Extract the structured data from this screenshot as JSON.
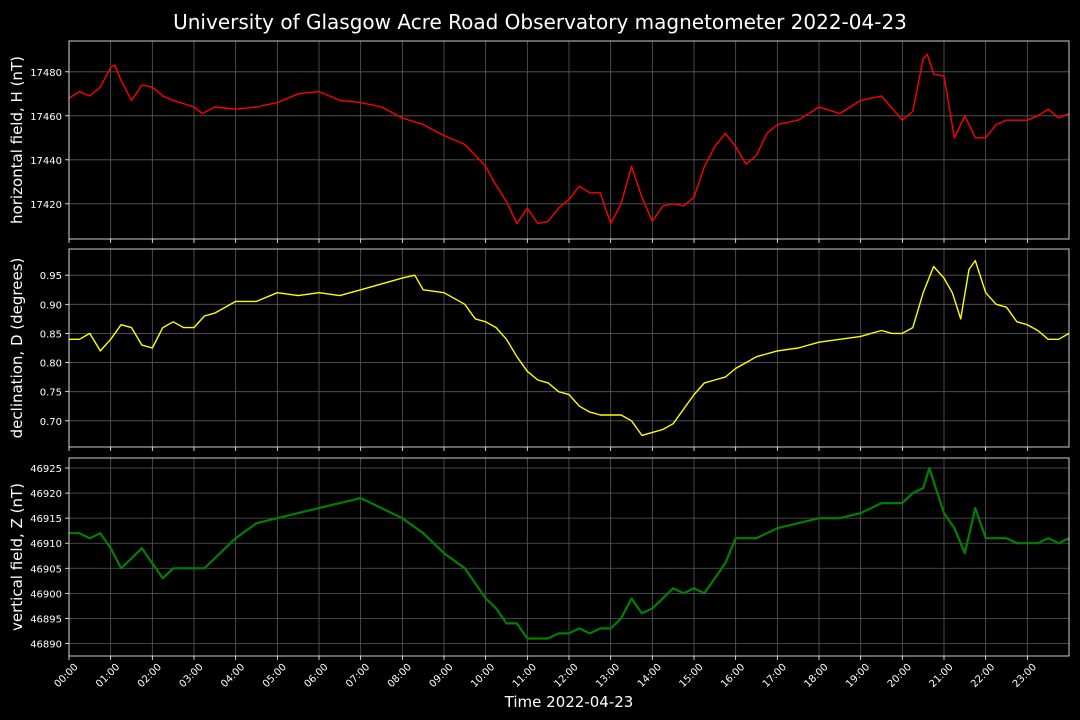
{
  "title": "University of Glasgow Acre Road Observatory magnetometer 2022-04-23",
  "chart_data": [
    {
      "type": "line",
      "ylabel": "horizontal field, H (nT)",
      "color": "#ff0000",
      "ylim": [
        17404,
        17494
      ],
      "yticks": [
        17420,
        17440,
        17460,
        17480
      ],
      "x_hours": [
        0,
        0.25,
        0.5,
        0.75,
        1.0,
        1.1,
        1.25,
        1.5,
        1.75,
        2.0,
        2.25,
        2.5,
        3.0,
        3.2,
        3.5,
        4.0,
        4.5,
        5.0,
        5.5,
        6.0,
        6.5,
        7.0,
        7.5,
        8.0,
        8.5,
        9.0,
        9.5,
        10.0,
        10.2,
        10.5,
        10.75,
        11.0,
        11.25,
        11.5,
        11.75,
        12.0,
        12.25,
        12.5,
        12.75,
        13.0,
        13.25,
        13.5,
        13.75,
        14.0,
        14.25,
        14.5,
        14.75,
        15.0,
        15.25,
        15.5,
        15.75,
        16.0,
        16.25,
        16.5,
        16.75,
        17.0,
        17.5,
        18.0,
        18.5,
        19.0,
        19.5,
        20.0,
        20.25,
        20.5,
        20.6,
        20.75,
        21.0,
        21.25,
        21.5,
        21.75,
        22.0,
        22.25,
        22.5,
        23.0,
        23.25,
        23.5,
        23.75,
        24.0
      ],
      "values": [
        17468,
        17471,
        17469,
        17473,
        17482,
        17483,
        17476,
        17467,
        17474,
        17473,
        17469,
        17467,
        17464,
        17461,
        17464,
        17463,
        17464,
        17466,
        17470,
        17471,
        17467,
        17466,
        17464,
        17459,
        17456,
        17451,
        17447,
        17437,
        17430,
        17421,
        17411,
        17418,
        17411,
        17412,
        17418,
        17422,
        17428,
        17425,
        17425,
        17411,
        17420,
        17437,
        17423,
        17412,
        17419,
        17420,
        17419,
        17423,
        17437,
        17446,
        17452,
        17446,
        17438,
        17442,
        17452,
        17456,
        17458,
        17464,
        17461,
        17467,
        17469,
        17458,
        17462,
        17486,
        17488,
        17479,
        17478,
        17450,
        17460,
        17450,
        17450,
        17456,
        17458,
        17458,
        17460,
        17463,
        17459,
        17461
      ]
    },
    {
      "type": "line",
      "ylabel": "declination, D (degrees)",
      "color": "#ffff00",
      "ylim": [
        0.655,
        0.995
      ],
      "yticks": [
        0.7,
        0.75,
        0.8,
        0.85,
        0.9,
        0.95
      ],
      "x_hours": [
        0,
        0.25,
        0.5,
        0.75,
        1.0,
        1.25,
        1.5,
        1.75,
        2.0,
        2.25,
        2.5,
        2.75,
        3.0,
        3.25,
        3.5,
        4.0,
        4.5,
        5.0,
        5.5,
        6.0,
        6.5,
        7.0,
        7.5,
        8.0,
        8.3,
        8.5,
        9.0,
        9.5,
        9.75,
        10.0,
        10.25,
        10.5,
        10.75,
        11.0,
        11.25,
        11.5,
        11.75,
        12.0,
        12.25,
        12.5,
        12.75,
        13.0,
        13.25,
        13.5,
        13.75,
        14.0,
        14.25,
        14.5,
        14.75,
        15.0,
        15.25,
        15.5,
        15.75,
        16.0,
        16.25,
        16.5,
        17.0,
        17.5,
        18.0,
        18.5,
        19.0,
        19.5,
        19.75,
        20.0,
        20.25,
        20.5,
        20.75,
        21.0,
        21.2,
        21.4,
        21.6,
        21.75,
        22.0,
        22.25,
        22.5,
        22.75,
        23.0,
        23.25,
        23.5,
        23.75,
        24.0
      ],
      "values": [
        0.84,
        0.84,
        0.85,
        0.82,
        0.84,
        0.865,
        0.86,
        0.83,
        0.825,
        0.86,
        0.87,
        0.86,
        0.86,
        0.88,
        0.885,
        0.905,
        0.905,
        0.92,
        0.915,
        0.92,
        0.915,
        0.925,
        0.935,
        0.945,
        0.95,
        0.925,
        0.92,
        0.9,
        0.875,
        0.87,
        0.86,
        0.84,
        0.81,
        0.785,
        0.77,
        0.765,
        0.75,
        0.745,
        0.725,
        0.715,
        0.71,
        0.71,
        0.71,
        0.7,
        0.675,
        0.68,
        0.685,
        0.695,
        0.72,
        0.745,
        0.765,
        0.77,
        0.775,
        0.79,
        0.8,
        0.81,
        0.82,
        0.825,
        0.835,
        0.84,
        0.845,
        0.855,
        0.85,
        0.85,
        0.86,
        0.92,
        0.965,
        0.945,
        0.92,
        0.875,
        0.96,
        0.975,
        0.92,
        0.9,
        0.895,
        0.87,
        0.865,
        0.855,
        0.84,
        0.84,
        0.85
      ]
    },
    {
      "type": "line",
      "ylabel": "vertical field, Z (nT)",
      "color": "#008000",
      "ylim": [
        46887.5,
        46927
      ],
      "yticks": [
        46890,
        46895,
        46900,
        46905,
        46910,
        46915,
        46920,
        46925
      ],
      "x_hours": [
        0,
        0.25,
        0.5,
        0.75,
        1.0,
        1.25,
        1.5,
        1.75,
        2.0,
        2.25,
        2.5,
        2.75,
        3.0,
        3.25,
        3.5,
        4.0,
        4.5,
        5.0,
        5.5,
        6.0,
        6.5,
        7.0,
        7.5,
        8.0,
        8.5,
        9.0,
        9.5,
        10.0,
        10.25,
        10.5,
        10.75,
        11.0,
        11.25,
        11.5,
        11.75,
        12.0,
        12.25,
        12.5,
        12.75,
        13.0,
        13.25,
        13.5,
        13.75,
        14.0,
        14.25,
        14.5,
        14.75,
        15.0,
        15.25,
        15.5,
        15.75,
        16.0,
        16.5,
        17.0,
        17.5,
        18.0,
        18.5,
        19.0,
        19.5,
        20.0,
        20.25,
        20.5,
        20.65,
        20.8,
        21.0,
        21.25,
        21.5,
        21.75,
        22.0,
        22.25,
        22.5,
        22.75,
        23.0,
        23.25,
        23.5,
        23.75,
        24.0
      ],
      "values": [
        46912,
        46912,
        46911,
        46912,
        46909,
        46905,
        46907,
        46909,
        46906,
        46903,
        46905,
        46905,
        46905,
        46905,
        46907,
        46911,
        46914,
        46915,
        46916,
        46917,
        46918,
        46919,
        46917,
        46915,
        46912,
        46908,
        46905,
        46899,
        46897,
        46894,
        46894,
        46891,
        46891,
        46891,
        46892,
        46892,
        46893,
        46892,
        46893,
        46893,
        46895,
        46899,
        46896,
        46897,
        46899,
        46901,
        46900,
        46901,
        46900,
        46903,
        46906,
        46911,
        46911,
        46913,
        46914,
        46915,
        46915,
        46916,
        46918,
        46918,
        46920,
        46921,
        46925,
        46921,
        46916,
        46913,
        46908,
        46917,
        46911,
        46911,
        46911,
        46910,
        46910,
        46910,
        46911,
        46910,
        46911
      ]
    }
  ],
  "x_tick_labels": [
    "00:00",
    "01:00",
    "02:00",
    "03:00",
    "04:00",
    "05:00",
    "06:00",
    "07:00",
    "08:00",
    "09:00",
    "10:00",
    "11:00",
    "12:00",
    "13:00",
    "14:00",
    "15:00",
    "16:00",
    "17:00",
    "18:00",
    "19:00",
    "20:00",
    "21:00",
    "22:00",
    "23:00"
  ],
  "x_range_hours": [
    0,
    24
  ],
  "xlabel": "Time 2022-04-23",
  "grid": true,
  "background": "#000000"
}
